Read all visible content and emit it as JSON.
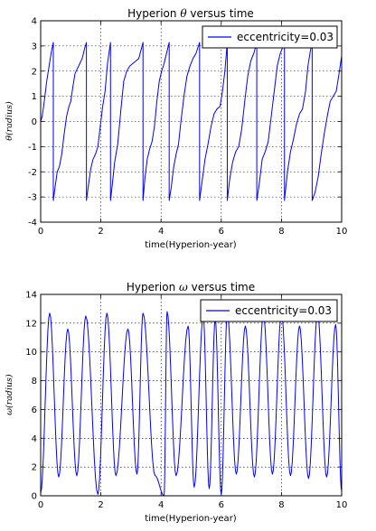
{
  "chart_data": [
    {
      "type": "line",
      "title": "Hyperion θ versus time",
      "xlabel": "time(Hyperion-year)",
      "ylabel": "θ(radius)",
      "xlim": [
        0,
        10
      ],
      "ylim": [
        -4,
        4
      ],
      "xticks": [
        0,
        2,
        4,
        6,
        8,
        10
      ],
      "yticks": [
        -4,
        -3,
        -2,
        -1,
        0,
        1,
        2,
        3,
        4
      ],
      "grid": true,
      "legend_position": "top-right",
      "color": "#0000ff",
      "series": [
        {
          "name": "eccentricity=0.03",
          "x": [
            0,
            0.05,
            0.12,
            0.2,
            0.28,
            0.36,
            0.42,
            0.42,
            0.48,
            0.55,
            0.62,
            0.7,
            0.78,
            0.86,
            0.94,
            1.0,
            1.06,
            1.14,
            1.22,
            1.3,
            1.38,
            1.46,
            1.52,
            1.52,
            1.58,
            1.66,
            1.74,
            1.82,
            1.9,
            1.98,
            2.06,
            2.14,
            2.22,
            2.32,
            2.32,
            2.38,
            2.46,
            2.56,
            2.66,
            2.76,
            2.86,
            2.96,
            3.06,
            3.16,
            3.26,
            3.4,
            3.4,
            3.46,
            3.54,
            3.62,
            3.7,
            3.78,
            3.86,
            3.94,
            4.02,
            4.1,
            4.18,
            4.27,
            4.27,
            4.34,
            4.42,
            4.5,
            4.58,
            4.66,
            4.76,
            4.86,
            4.96,
            5.06,
            5.16,
            5.28,
            5.28,
            5.36,
            5.46,
            5.56,
            5.66,
            5.76,
            5.86,
            5.96,
            6.04,
            6.12,
            6.2,
            6.2,
            6.28,
            6.38,
            6.48,
            6.58,
            6.68,
            6.78,
            6.88,
            6.98,
            7.08,
            7.18,
            7.18,
            7.26,
            7.36,
            7.46,
            7.56,
            7.66,
            7.76,
            7.86,
            7.96,
            8.06,
            8.1,
            8.1,
            8.2,
            8.3,
            8.4,
            8.5,
            8.6,
            8.7,
            8.8,
            8.88,
            8.96,
            9.02,
            9.02,
            9.12,
            9.22,
            9.32,
            9.42,
            9.52,
            9.62,
            9.72,
            9.82,
            9.9,
            10.0
          ],
          "y": [
            0,
            0.2,
            0.8,
            1.6,
            2.2,
            2.8,
            3.14,
            -3.14,
            -2.6,
            -2.0,
            -1.8,
            -1.3,
            -0.5,
            0.2,
            0.6,
            0.8,
            1.3,
            1.9,
            2.1,
            2.3,
            2.5,
            2.9,
            3.14,
            -3.14,
            -2.6,
            -1.9,
            -1.5,
            -1.3,
            -1.0,
            -0.2,
            0.6,
            1.2,
            2.3,
            3.14,
            -3.14,
            -2.5,
            -1.6,
            -0.9,
            0.4,
            1.6,
            2.0,
            2.2,
            2.3,
            2.4,
            2.5,
            3.14,
            -3.14,
            -2.3,
            -1.5,
            -1.1,
            -0.8,
            -0.2,
            0.8,
            1.6,
            2.0,
            2.3,
            2.7,
            3.14,
            -3.14,
            -2.6,
            -1.8,
            -1.3,
            -0.9,
            0.0,
            1.0,
            1.8,
            2.2,
            2.5,
            2.7,
            3.14,
            -3.14,
            -2.4,
            -1.5,
            -0.9,
            -0.2,
            0.3,
            0.5,
            0.6,
            1.2,
            2.0,
            3.14,
            -3.14,
            -2.3,
            -1.6,
            -1.2,
            -1.0,
            -0.3,
            0.8,
            1.8,
            2.4,
            2.7,
            3.14,
            -3.14,
            -2.5,
            -1.5,
            -1.2,
            -0.8,
            0.2,
            1.2,
            2.2,
            2.7,
            3.0,
            3.14,
            -3.14,
            -2.0,
            -1.2,
            -0.7,
            -0.1,
            0.3,
            0.5,
            1.2,
            2.2,
            2.8,
            3.14,
            -3.14,
            -2.8,
            -2.2,
            -1.3,
            -0.5,
            0.2,
            0.8,
            1.0,
            1.2,
            1.8,
            2.6
          ]
        }
      ]
    },
    {
      "type": "line",
      "title": "Hyperion ω versus time",
      "xlabel": "time(Hyperion-year)",
      "ylabel": "ω(radius)",
      "xlim": [
        0,
        10
      ],
      "ylim": [
        0,
        14
      ],
      "xticks": [
        0,
        2,
        4,
        6,
        8,
        10
      ],
      "yticks": [
        0,
        2,
        4,
        6,
        8,
        10,
        12,
        14
      ],
      "grid": true,
      "legend_position": "top-right",
      "color": "#0000ff",
      "series": [
        {
          "name": "eccentricity=0.03",
          "x": [
            0,
            0.3,
            0.6,
            0.9,
            1.2,
            1.5,
            1.9,
            2.2,
            2.5,
            2.9,
            3.2,
            3.4,
            3.8,
            4.1,
            4.2,
            4.5,
            4.9,
            5.1,
            5.4,
            5.6,
            5.8,
            6.0,
            6.2,
            6.5,
            6.8,
            7.1,
            7.4,
            7.7,
            8.0,
            8.3,
            8.6,
            8.9,
            9.2,
            9.5,
            9.8,
            10.0
          ],
          "y": [
            0.2,
            12.7,
            1.3,
            11.6,
            1.4,
            12.5,
            0.1,
            12.7,
            1.4,
            11.6,
            1.5,
            12.7,
            1.4,
            0.0,
            12.8,
            1.4,
            11.8,
            0.6,
            12.5,
            0.5,
            12.3,
            0.1,
            12.7,
            1.5,
            11.8,
            1.3,
            12.6,
            1.5,
            12.7,
            1.4,
            11.8,
            1.2,
            12.7,
            1.3,
            11.9,
            0.3
          ]
        }
      ]
    }
  ]
}
